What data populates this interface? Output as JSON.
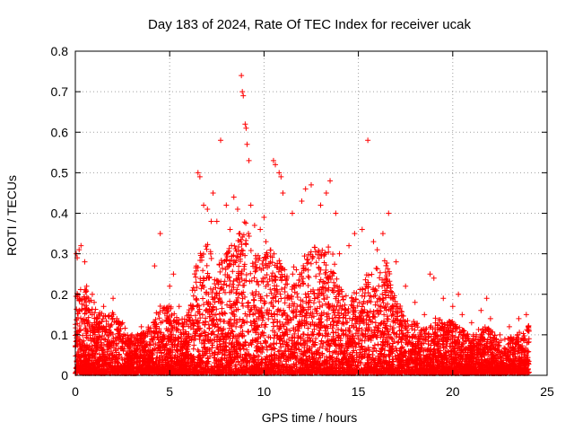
{
  "chart_data": {
    "type": "scatter",
    "title": "Day 183 of 2024, Rate Of TEC Index for receiver ucak",
    "xlabel": "GPS time / hours",
    "ylabel": "ROTI / TECUs",
    "xlim": [
      0,
      25
    ],
    "ylim": [
      0,
      0.8
    ],
    "xticks": [
      0,
      5,
      10,
      15,
      20,
      25
    ],
    "xtick_labels": [
      "0",
      "5",
      "10",
      "15",
      "20",
      "25"
    ],
    "yticks": [
      0,
      0.1,
      0.2,
      0.3,
      0.4,
      0.5,
      0.6,
      0.7,
      0.8
    ],
    "ytick_labels": [
      "0",
      "0.1",
      "0.2",
      "0.3",
      "0.4",
      "0.5",
      "0.6",
      "0.7",
      "0.8"
    ],
    "grid": true,
    "legend": "none",
    "marker": "+",
    "series": [
      {
        "color": "#ff0000",
        "points": [
          [
            0.05,
            0.3
          ],
          [
            0.1,
            0.29
          ],
          [
            0.2,
            0.31
          ],
          [
            0.3,
            0.32
          ],
          [
            0.5,
            0.28
          ],
          [
            0.6,
            0.22
          ],
          [
            0.9,
            0.2
          ],
          [
            1.0,
            0.18
          ],
          [
            1.5,
            0.17
          ],
          [
            2.0,
            0.19
          ],
          [
            2.2,
            0.14
          ],
          [
            2.5,
            0.13
          ],
          [
            3.0,
            0.1
          ],
          [
            3.5,
            0.12
          ],
          [
            4.0,
            0.11
          ],
          [
            4.2,
            0.27
          ],
          [
            4.5,
            0.35
          ],
          [
            5.0,
            0.22
          ],
          [
            5.2,
            0.25
          ],
          [
            5.5,
            0.17
          ],
          [
            6.0,
            0.15
          ],
          [
            6.2,
            0.21
          ],
          [
            6.4,
            0.23
          ],
          [
            6.5,
            0.5
          ],
          [
            6.6,
            0.49
          ],
          [
            6.8,
            0.42
          ],
          [
            7.0,
            0.41
          ],
          [
            7.2,
            0.38
          ],
          [
            7.3,
            0.45
          ],
          [
            7.5,
            0.38
          ],
          [
            7.7,
            0.58
          ],
          [
            8.0,
            0.42
          ],
          [
            8.2,
            0.36
          ],
          [
            8.4,
            0.44
          ],
          [
            8.6,
            0.41
          ],
          [
            8.8,
            0.74
          ],
          [
            8.85,
            0.7
          ],
          [
            8.9,
            0.69
          ],
          [
            9.0,
            0.62
          ],
          [
            9.05,
            0.61
          ],
          [
            9.1,
            0.57
          ],
          [
            9.2,
            0.53
          ],
          [
            9.3,
            0.42
          ],
          [
            9.5,
            0.37
          ],
          [
            9.8,
            0.36
          ],
          [
            10.0,
            0.39
          ],
          [
            10.1,
            0.33
          ],
          [
            10.5,
            0.53
          ],
          [
            10.6,
            0.52
          ],
          [
            10.8,
            0.5
          ],
          [
            10.9,
            0.49
          ],
          [
            11.0,
            0.45
          ],
          [
            11.5,
            0.4
          ],
          [
            12.0,
            0.43
          ],
          [
            12.2,
            0.46
          ],
          [
            12.5,
            0.47
          ],
          [
            13.0,
            0.42
          ],
          [
            13.3,
            0.45
          ],
          [
            13.5,
            0.48
          ],
          [
            13.8,
            0.4
          ],
          [
            14.0,
            0.3
          ],
          [
            14.5,
            0.32
          ],
          [
            14.8,
            0.35
          ],
          [
            15.2,
            0.36
          ],
          [
            15.5,
            0.58
          ],
          [
            15.8,
            0.33
          ],
          [
            16.0,
            0.31
          ],
          [
            16.3,
            0.35
          ],
          [
            16.6,
            0.4
          ],
          [
            17.0,
            0.28
          ],
          [
            17.5,
            0.22
          ],
          [
            18.0,
            0.18
          ],
          [
            18.5,
            0.15
          ],
          [
            18.8,
            0.25
          ],
          [
            19.0,
            0.24
          ],
          [
            19.5,
            0.19
          ],
          [
            20.0,
            0.17
          ],
          [
            20.3,
            0.2
          ],
          [
            20.5,
            0.15
          ],
          [
            21.0,
            0.13
          ],
          [
            21.5,
            0.16
          ],
          [
            21.8,
            0.19
          ],
          [
            22.0,
            0.14
          ],
          [
            22.5,
            0.1
          ],
          [
            23.0,
            0.12
          ],
          [
            23.5,
            0.14
          ],
          [
            23.9,
            0.15
          ],
          [
            24.0,
            0.12
          ]
        ],
        "density_profile": [
          [
            0.0,
            0.2
          ],
          [
            0.5,
            0.22
          ],
          [
            1.0,
            0.16
          ],
          [
            1.5,
            0.15
          ],
          [
            2.0,
            0.15
          ],
          [
            2.5,
            0.12
          ],
          [
            3.0,
            0.09
          ],
          [
            3.5,
            0.1
          ],
          [
            4.0,
            0.12
          ],
          [
            4.5,
            0.17
          ],
          [
            5.0,
            0.17
          ],
          [
            5.5,
            0.13
          ],
          [
            6.0,
            0.15
          ],
          [
            6.5,
            0.3
          ],
          [
            7.0,
            0.32
          ],
          [
            7.5,
            0.26
          ],
          [
            8.0,
            0.3
          ],
          [
            8.5,
            0.33
          ],
          [
            9.0,
            0.38
          ],
          [
            9.5,
            0.29
          ],
          [
            10.0,
            0.3
          ],
          [
            10.5,
            0.33
          ],
          [
            11.0,
            0.26
          ],
          [
            11.5,
            0.26
          ],
          [
            12.0,
            0.28
          ],
          [
            12.5,
            0.32
          ],
          [
            13.0,
            0.3
          ],
          [
            13.5,
            0.33
          ],
          [
            14.0,
            0.22
          ],
          [
            14.5,
            0.18
          ],
          [
            15.0,
            0.22
          ],
          [
            15.5,
            0.25
          ],
          [
            16.0,
            0.27
          ],
          [
            16.5,
            0.28
          ],
          [
            17.0,
            0.2
          ],
          [
            17.5,
            0.13
          ],
          [
            18.0,
            0.13
          ],
          [
            18.5,
            0.11
          ],
          [
            19.0,
            0.14
          ],
          [
            19.5,
            0.13
          ],
          [
            20.0,
            0.13
          ],
          [
            20.5,
            0.11
          ],
          [
            21.0,
            0.09
          ],
          [
            21.5,
            0.12
          ],
          [
            22.0,
            0.11
          ],
          [
            22.5,
            0.08
          ],
          [
            23.0,
            0.09
          ],
          [
            23.5,
            0.1
          ],
          [
            24.0,
            0.12
          ]
        ]
      }
    ]
  }
}
